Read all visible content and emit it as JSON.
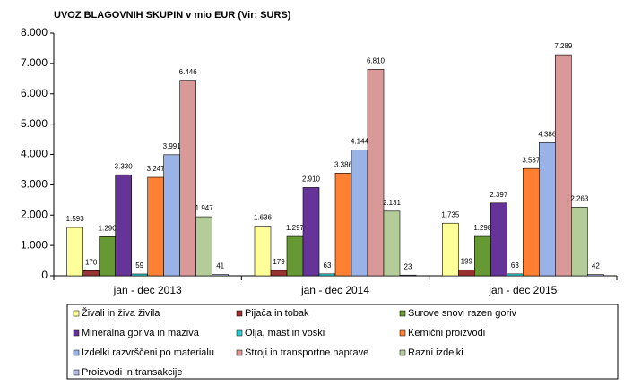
{
  "chart_data": {
    "type": "bar",
    "title": "UVOZ BLAGOVNIH SKUPIN v mio EUR (Vir: SURS)",
    "categories": [
      "jan - dec 2013",
      "jan - dec 2014",
      "jan - dec 2015"
    ],
    "ylim": [
      0,
      8000
    ],
    "yticks": [
      0,
      {
        "value": 1000,
        "label": "1.000"
      },
      {
        "value": 2000,
        "label": "2.000"
      },
      {
        "value": 3000,
        "label": "3.000"
      },
      {
        "value": 4000,
        "label": "4.000"
      },
      {
        "value": 5000,
        "label": "5.000"
      },
      {
        "value": 6000,
        "label": "6.000"
      },
      {
        "value": 7000,
        "label": "7.000"
      },
      {
        "value": 8000,
        "label": "8.000"
      }
    ],
    "series": [
      {
        "name": "Živali in živa živila",
        "color": "#ffff99",
        "values": [
          1593,
          1636,
          1735
        ],
        "value_labels": [
          "1.593",
          "1.636",
          "1.735"
        ]
      },
      {
        "name": "Pijača in tobak",
        "color": "#993333",
        "values": [
          170,
          179,
          199
        ],
        "value_labels": [
          "170",
          "179",
          "199"
        ]
      },
      {
        "name": "Surove snovi razen goriv",
        "color": "#669933",
        "values": [
          1290,
          1297,
          1298
        ],
        "value_labels": [
          "1.290",
          "1.297",
          "1.298"
        ]
      },
      {
        "name": "Mineralna goriva in maziva",
        "color": "#663399",
        "values": [
          3330,
          2910,
          2397
        ],
        "value_labels": [
          "3.330",
          "2.910",
          "2.397"
        ]
      },
      {
        "name": "Olja, mast in voski",
        "color": "#33cccc",
        "values": [
          59,
          63,
          63
        ],
        "value_labels": [
          "59",
          "63",
          "63"
        ]
      },
      {
        "name": "Kemični proizvodi",
        "color": "#ff8033",
        "values": [
          3247,
          3386,
          3537
        ],
        "value_labels": [
          "3.247",
          "3.386",
          "3.537"
        ]
      },
      {
        "name": "Izdelki razvrščeni po materialu",
        "color": "#99b3e6",
        "values": [
          3991,
          4144,
          4386
        ],
        "value_labels": [
          "3.991",
          "4.144",
          "4.386"
        ]
      },
      {
        "name": "Stroji in transportne naprave",
        "color": "#d99999",
        "values": [
          6446,
          6810,
          7289
        ],
        "value_labels": [
          "6.446",
          "6.810",
          "7.289"
        ]
      },
      {
        "name": "Razni izdelki",
        "color": "#b3cc99",
        "values": [
          1947,
          2131,
          2263
        ],
        "value_labels": [
          "1.947",
          "2.131",
          "2.263"
        ]
      },
      {
        "name": "Proizvodi in transakcije",
        "color": "#b3b3e6",
        "values": [
          41,
          23,
          42
        ],
        "value_labels": [
          "41",
          "23",
          "42"
        ]
      }
    ],
    "grid": false,
    "legend": "bottom"
  }
}
